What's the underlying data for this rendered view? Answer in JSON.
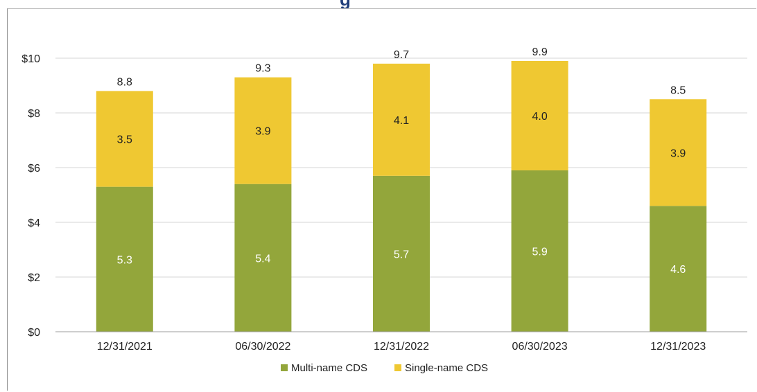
{
  "chart_data": {
    "type": "bar",
    "stacked": true,
    "title": "",
    "xlabel": "",
    "ylabel": "",
    "categories": [
      "12/31/2021",
      "06/30/2022",
      "12/31/2022",
      "06/30/2023",
      "12/31/2023"
    ],
    "series": [
      {
        "name": "Multi-name CDS",
        "values": [
          5.3,
          5.4,
          5.7,
          5.9,
          4.6
        ],
        "color": "#93a63b",
        "label_color": "#ffffff"
      },
      {
        "name": "Single-name CDS",
        "values": [
          3.5,
          3.9,
          4.1,
          4.0,
          3.9
        ],
        "color": "#efc832",
        "label_color": "#222222"
      }
    ],
    "totals": [
      "8.8",
      "9.3",
      "9.7",
      "9.9",
      "8.5"
    ],
    "segment_labels": [
      [
        "5.3",
        "5.4",
        "5.7",
        "5.9",
        "4.6"
      ],
      [
        "3.5",
        "3.9",
        "4.1",
        "4.0",
        "3.9"
      ]
    ],
    "yticks": [
      0,
      2,
      4,
      6,
      8,
      10
    ],
    "ytick_labels": [
      "$0",
      "$2",
      "$4",
      "$6",
      "$8",
      "$10"
    ],
    "ylim": [
      0,
      10
    ],
    "grid": true,
    "legend_position": "bottom",
    "gridline_color": "#d4d4d4",
    "axis_color": "#9e9e9e"
  }
}
